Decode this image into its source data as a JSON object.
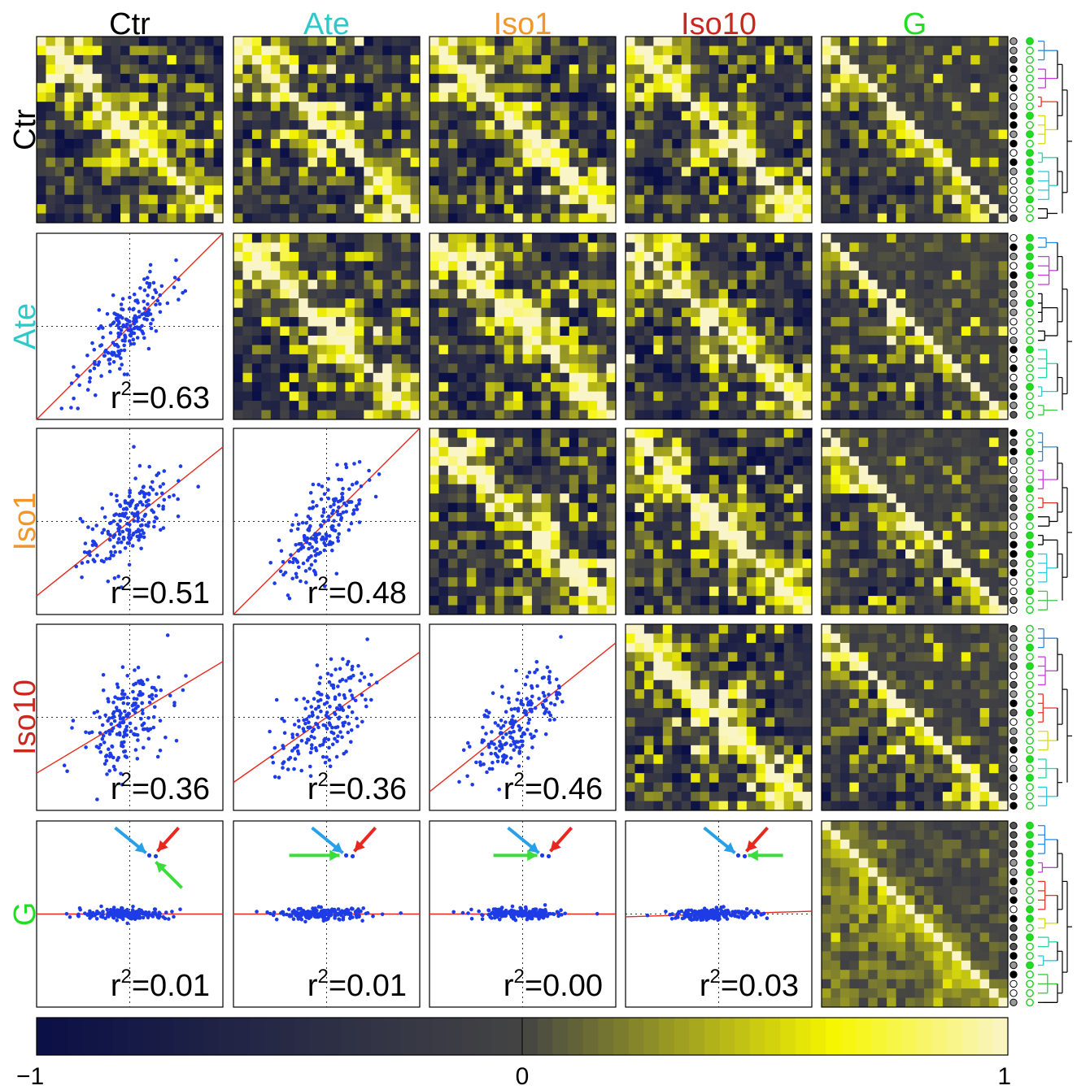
{
  "labels": [
    "Ctr",
    "Ate",
    "Iso1",
    "Iso10",
    "G"
  ],
  "label_colors": [
    "#000000",
    "#2ec8c8",
    "#f0962a",
    "#c8281e",
    "#22dd22"
  ],
  "colorbar": {
    "min": "−1",
    "mid": "0",
    "max": "1"
  },
  "chart_data": {
    "type": "heatmap",
    "description_matrix_size": 20,
    "colormap": [
      "#0a0f46",
      "#444444",
      "#f6f600",
      "#faf5c8"
    ],
    "color_range": [
      -1,
      1
    ],
    "r2_values": [
      {
        "row": "Ate",
        "col": "Ctr",
        "value": "0.63",
        "slope": 1.0
      },
      {
        "row": "Iso1",
        "col": "Ctr",
        "value": "0.51",
        "slope": 0.8
      },
      {
        "row": "Iso1",
        "col": "Ate",
        "value": "0.48",
        "slope": 1.0
      },
      {
        "row": "Iso10",
        "col": "Ctr",
        "value": "0.36",
        "slope": 0.6
      },
      {
        "row": "Iso10",
        "col": "Ate",
        "value": "0.36",
        "slope": 0.7
      },
      {
        "row": "Iso10",
        "col": "Iso1",
        "value": "0.46",
        "slope": 0.8
      },
      {
        "row": "G",
        "col": "Ctr",
        "value": "0.01",
        "slope": 0.0
      },
      {
        "row": "G",
        "col": "Ate",
        "value": "0.01",
        "slope": 0.0
      },
      {
        "row": "G",
        "col": "Iso1",
        "value": "0.00",
        "slope": 0.0
      },
      {
        "row": "G",
        "col": "Iso10",
        "value": "0.03",
        "slope": 0.03
      }
    ],
    "arrow_colors": {
      "red": "#e8281e",
      "blue": "#28a0e8",
      "green": "#3cdc3c"
    },
    "dendrogram_colors": [
      "#2a8ae0",
      "#c83cdc",
      "#e83228",
      "#d8d820",
      "#20d8a0",
      "#2ac8d8",
      "#3cc83c",
      "#5050e0"
    ]
  }
}
